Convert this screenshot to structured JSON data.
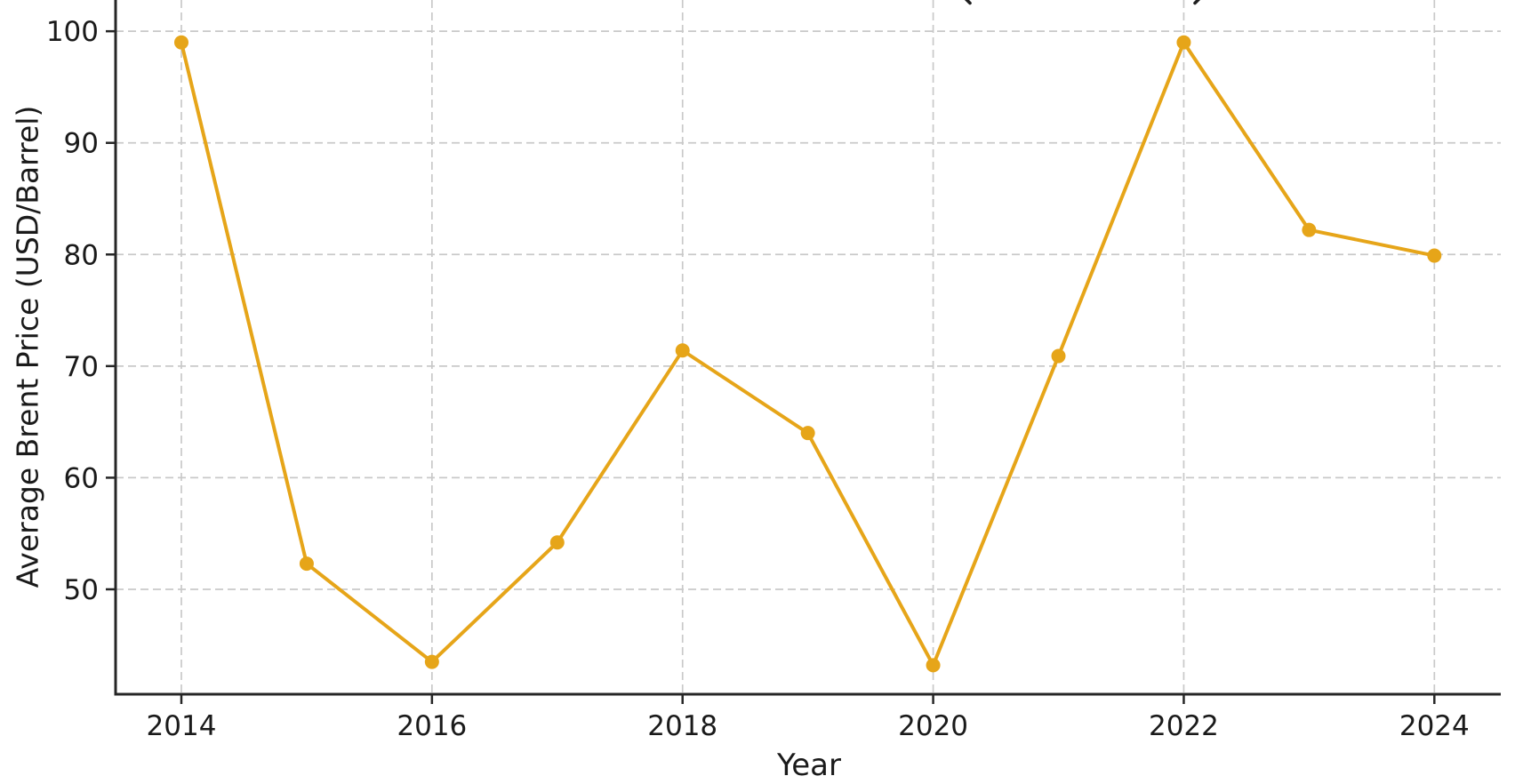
{
  "figure": {
    "description": "Line chart of average annual Brent crude oil price from 2014 to 2024",
    "title_cropped": true,
    "title_visible_glyphs": [
      "(",
      ")"
    ]
  },
  "chart_data": {
    "type": "line",
    "x": [
      2014,
      2015,
      2016,
      2017,
      2018,
      2019,
      2020,
      2021,
      2022,
      2023,
      2024
    ],
    "series": [
      {
        "name": "Average Brent Price",
        "values": [
          99.0,
          52.3,
          43.5,
          54.2,
          71.4,
          64.0,
          43.2,
          70.9,
          99.0,
          82.2,
          79.9
        ],
        "color": "#E6A519",
        "marker": "circle",
        "line_style": "solid"
      }
    ],
    "title": "",
    "xlabel": "Year",
    "ylabel": "Average Brent Price (USD/Barrel)",
    "x_ticks": [
      2014,
      2016,
      2018,
      2020,
      2022,
      2024
    ],
    "y_ticks": [
      50,
      60,
      70,
      80,
      90,
      100
    ],
    "xlim": [
      2013.475,
      2024.53
    ],
    "ylim": [
      40.6,
      102.8
    ],
    "grid": true,
    "grid_style": "dashed",
    "legend_position": "none"
  },
  "colors": {
    "line": "#E6A519",
    "grid": "#C9C9C9",
    "spine": "#262626",
    "tick": "#262626",
    "text": "#1A1A1A",
    "background": "#FFFFFF"
  }
}
